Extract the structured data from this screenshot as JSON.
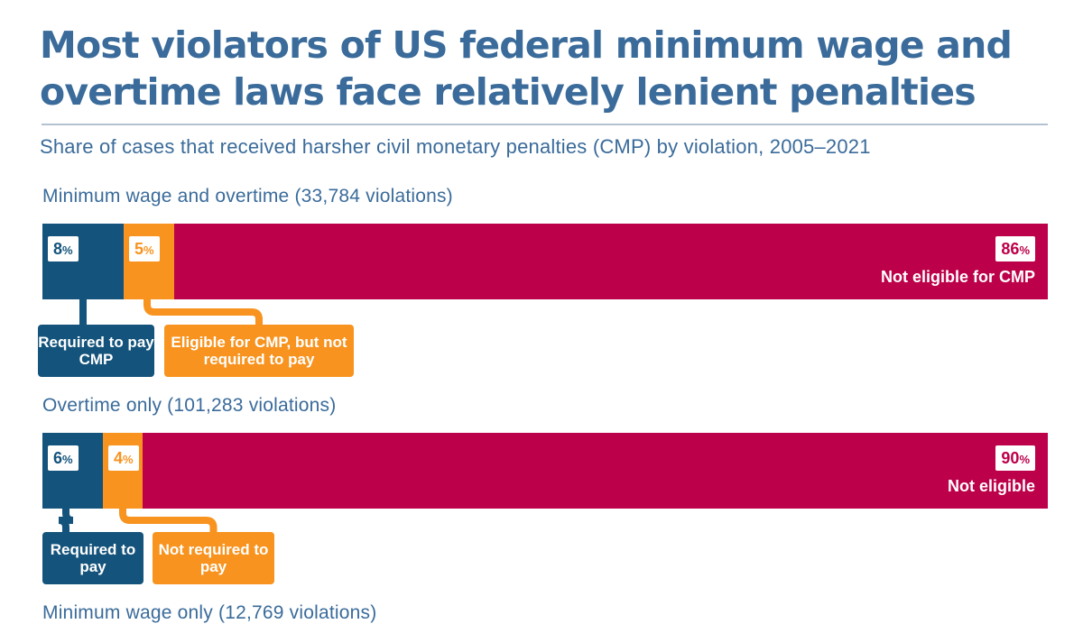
{
  "colors": {
    "required": "#14537b",
    "eligible": "#f7931e",
    "not_eligible": "#bc0049",
    "title": "#3a6b9a"
  },
  "chart_data": {
    "type": "bar",
    "stacked": true,
    "orientation": "horizontal",
    "title": "Most violators of US federal minimum wage and overtime laws face relatively lenient penalties",
    "subtitle": "Share of cases that received harsher civil monetary penalties (CMP) by violation, 2005–2021",
    "groups": [
      {
        "label": "Minimum wage and overtime (33,784 violations)",
        "segments": [
          {
            "key": "required",
            "value": 8,
            "label_num": "8",
            "callout": "Required to pay CMP"
          },
          {
            "key": "eligible",
            "value": 5,
            "label_num": "5",
            "callout": "Eligible for CMP, but not required to pay"
          },
          {
            "key": "not_eligible",
            "value": 86,
            "label_num": "86",
            "text": "Not eligible for CMP"
          }
        ]
      },
      {
        "label": "Overtime only (101,283 violations)",
        "segments": [
          {
            "key": "required",
            "value": 6,
            "label_num": "6",
            "callout": "Required to pay"
          },
          {
            "key": "eligible",
            "value": 4,
            "label_num": "4",
            "callout": "Not required to pay"
          },
          {
            "key": "not_eligible",
            "value": 90,
            "label_num": "90",
            "text": "Not eligible"
          }
        ]
      },
      {
        "label": "Minimum wage only (12,769 violations)"
      }
    ],
    "pct_symbol": "%"
  }
}
